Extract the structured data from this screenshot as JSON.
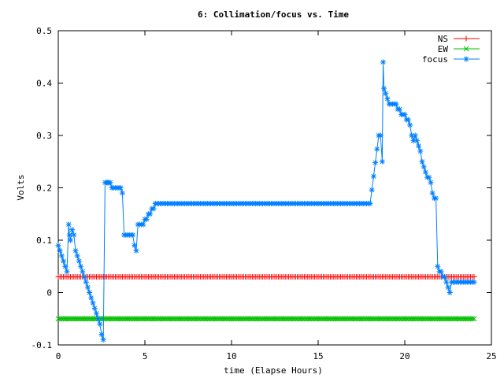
{
  "chart_data": {
    "type": "line",
    "title": "6: Collimation/focus vs. Time",
    "xlabel": "time (Elapse Hours)",
    "ylabel": "Volts",
    "xlim": [
      0,
      25
    ],
    "ylim": [
      -0.1,
      0.5
    ],
    "x_ticks": [
      0,
      5,
      10,
      15,
      20,
      25
    ],
    "x_tick_labels": [
      "0",
      "5",
      "10",
      "15",
      "20",
      "25"
    ],
    "y_ticks": [
      -0.1,
      0,
      0.1,
      0.2,
      0.3,
      0.4,
      0.5
    ],
    "y_tick_labels": [
      "-0.1",
      "0",
      "0.1",
      "0.2",
      "0.3",
      "0.4",
      "0.5"
    ],
    "grid": false,
    "legend_position": "top-right",
    "series": [
      {
        "name": "NS",
        "color": "#ff0000",
        "marker": "plus",
        "x": [
          0,
          24
        ],
        "y": [
          0.03,
          0.03
        ]
      },
      {
        "name": "EW",
        "color": "#00c000",
        "marker": "cross",
        "x": [
          0,
          24
        ],
        "y": [
          -0.05,
          -0.05
        ]
      },
      {
        "name": "focus",
        "color": "#0080ff",
        "marker": "star",
        "x": [
          0.0,
          0.1,
          0.2,
          0.3,
          0.4,
          0.5,
          0.6,
          0.65,
          0.7,
          0.8,
          0.9,
          1.0,
          1.1,
          1.2,
          1.3,
          1.4,
          1.5,
          1.6,
          1.7,
          1.8,
          1.9,
          2.0,
          2.1,
          2.2,
          2.3,
          2.4,
          2.5,
          2.6,
          2.7,
          2.8,
          2.85,
          2.9,
          3.0,
          3.1,
          3.2,
          3.3,
          3.4,
          3.5,
          3.6,
          3.7,
          3.8,
          3.9,
          4.0,
          4.1,
          4.2,
          4.3,
          4.4,
          4.5,
          4.6,
          4.7,
          4.8,
          4.9,
          5.0,
          5.1,
          5.2,
          5.3,
          5.4,
          5.5,
          5.6,
          5.7,
          5.8,
          5.9,
          6.0,
          6.1,
          6.2,
          6.3,
          6.4,
          7.0,
          8.0,
          9.0,
          10.0,
          11.0,
          12.0,
          13.0,
          14.0,
          15.0,
          16.0,
          17.0,
          18.0,
          18.5,
          18.6,
          18.7,
          18.75,
          18.8,
          18.9,
          19.0,
          19.1,
          19.2,
          19.3,
          19.4,
          19.5,
          19.6,
          19.7,
          19.8,
          19.9,
          20.0,
          20.1,
          20.2,
          20.3,
          20.4,
          20.5,
          20.6,
          20.7,
          20.8,
          20.9,
          21.0,
          21.1,
          21.2,
          21.3,
          21.4,
          21.5,
          21.6,
          21.7,
          21.8,
          21.9,
          22.0,
          22.1,
          22.2,
          22.3,
          22.4,
          22.5,
          22.6,
          22.7,
          22.8,
          22.9,
          23.0,
          23.1,
          23.2,
          23.3,
          23.4,
          23.5,
          23.6,
          23.7,
          23.8,
          23.9,
          24.0
        ],
        "y": [
          0.09,
          0.08,
          0.07,
          0.06,
          0.05,
          0.04,
          0.13,
          0.11,
          0.1,
          0.12,
          0.11,
          0.08,
          0.07,
          0.06,
          0.05,
          0.04,
          0.03,
          0.02,
          0.01,
          0.0,
          -0.01,
          -0.02,
          -0.03,
          -0.04,
          -0.05,
          -0.06,
          -0.08,
          -0.09,
          0.21,
          0.21,
          0.21,
          0.21,
          0.21,
          0.2,
          0.2,
          0.2,
          0.2,
          0.2,
          0.2,
          0.19,
          0.11,
          0.11,
          0.11,
          0.11,
          0.11,
          0.11,
          0.09,
          0.08,
          0.13,
          0.13,
          0.13,
          0.13,
          0.14,
          0.14,
          0.15,
          0.15,
          0.16,
          0.16,
          0.17,
          0.17,
          0.17,
          0.17,
          0.17,
          0.17,
          0.17,
          0.17,
          0.17,
          0.17,
          0.17,
          0.17,
          0.17,
          0.17,
          0.17,
          0.17,
          0.17,
          0.17,
          0.17,
          0.17,
          0.17,
          0.3,
          0.3,
          0.25,
          0.44,
          0.39,
          0.38,
          0.37,
          0.36,
          0.36,
          0.36,
          0.36,
          0.36,
          0.35,
          0.35,
          0.34,
          0.34,
          0.34,
          0.33,
          0.33,
          0.32,
          0.3,
          0.29,
          0.3,
          0.29,
          0.28,
          0.27,
          0.25,
          0.24,
          0.23,
          0.22,
          0.22,
          0.21,
          0.19,
          0.18,
          0.18,
          0.05,
          0.04,
          0.04,
          0.03,
          0.03,
          0.02,
          0.01,
          0.0,
          0.02,
          0.02,
          0.02,
          0.02,
          0.02,
          0.02,
          0.02,
          0.02,
          0.02,
          0.02,
          0.02,
          0.02,
          0.02,
          0.02
        ]
      }
    ]
  }
}
